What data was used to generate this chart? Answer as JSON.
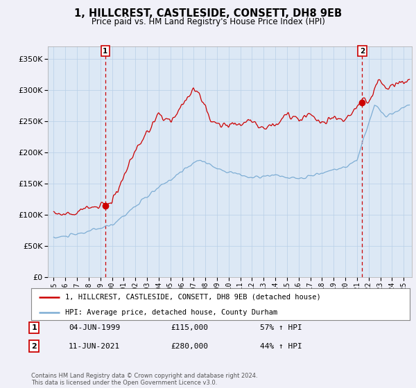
{
  "title": "1, HILLCREST, CASTLESIDE, CONSETT, DH8 9EB",
  "subtitle": "Price paid vs. HM Land Registry's House Price Index (HPI)",
  "legend_label_red": "1, HILLCREST, CASTLESIDE, CONSETT, DH8 9EB (detached house)",
  "legend_label_blue": "HPI: Average price, detached house, County Durham",
  "purchase1_date": "04-JUN-1999",
  "purchase1_price": 115000,
  "purchase1_hpi": "57% ↑ HPI",
  "purchase2_date": "11-JUN-2021",
  "purchase2_price": 280000,
  "purchase2_hpi": "44% ↑ HPI",
  "copyright": "Contains HM Land Registry data © Crown copyright and database right 2024.\nThis data is licensed under the Open Government Licence v3.0.",
  "ylim": [
    0,
    370000
  ],
  "yticks": [
    0,
    50000,
    100000,
    150000,
    200000,
    250000,
    300000,
    350000
  ],
  "background_color": "#f0f0f8",
  "plot_background": "#dce8f5",
  "red_color": "#cc0000",
  "blue_color": "#7dadd4",
  "grid_color": "#b8cfe8",
  "purchase1_year": 1999.42,
  "purchase2_year": 2021.44
}
